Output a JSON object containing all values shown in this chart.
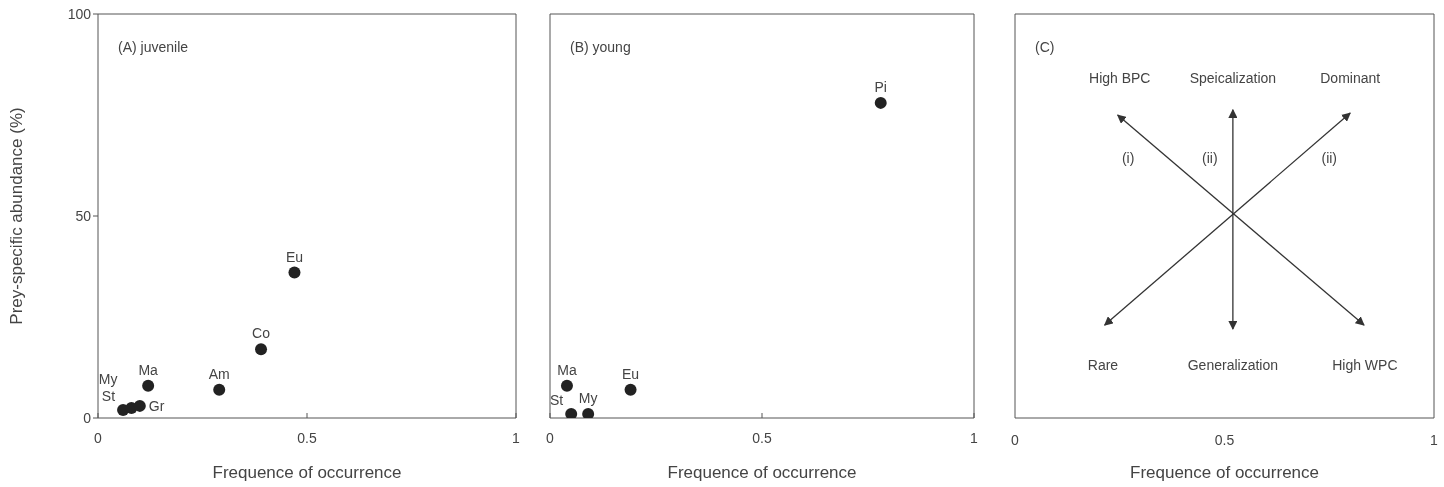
{
  "chart_data": [
    {
      "type": "scatter",
      "title": "(A) juvenile",
      "xlabel": "Frequence of occurrence",
      "ylabel": "Prey-specific abundance (%)",
      "xlim": [
        0,
        1
      ],
      "xticks": [
        0,
        0.5,
        1
      ],
      "ylim": [
        0,
        100
      ],
      "yticks": [
        0,
        50,
        100
      ],
      "marker": "circle",
      "series": [
        {
          "name": "Eu",
          "color": "#222222",
          "x": [
            0.47
          ],
          "values": [
            36
          ]
        },
        {
          "name": "Co",
          "color": "#222222",
          "x": [
            0.39
          ],
          "values": [
            17
          ]
        },
        {
          "name": "Am",
          "color": "#222222",
          "x": [
            0.29
          ],
          "values": [
            7
          ]
        },
        {
          "name": "Ma",
          "color": "#222222",
          "x": [
            0.12
          ],
          "values": [
            8
          ]
        },
        {
          "name": "St",
          "color": "#222222",
          "x": [
            0.06
          ],
          "values": [
            2
          ]
        },
        {
          "name": "My",
          "color": "#222222",
          "x": [
            0.08
          ],
          "values": [
            2.5
          ]
        },
        {
          "name": "Gr",
          "color": "#222222",
          "x": [
            0.1
          ],
          "values": [
            3
          ]
        }
      ]
    },
    {
      "type": "scatter",
      "title": "(B) young",
      "xlabel": "Frequence of occurrence",
      "xlim": [
        0,
        1
      ],
      "xticks": [
        0,
        0.5,
        1
      ],
      "ylim": [
        0,
        100
      ],
      "yticks": [
        0,
        50,
        100
      ],
      "tick_labels": "x",
      "marker": "circle",
      "series": [
        {
          "name": "Pi",
          "color": "#222222",
          "x": [
            0.78
          ],
          "values": [
            78
          ]
        },
        {
          "name": "Ma",
          "color": "#222222",
          "x": [
            0.04
          ],
          "values": [
            8
          ]
        },
        {
          "name": "Eu",
          "color": "#222222",
          "x": [
            0.19
          ],
          "values": [
            7
          ]
        },
        {
          "name": "St",
          "color": "#222222",
          "x": [
            0.05
          ],
          "values": [
            1
          ]
        },
        {
          "name": "My",
          "color": "#222222",
          "x": [
            0.09
          ],
          "values": [
            1
          ]
        }
      ]
    },
    {
      "type": "other",
      "title": "(C)",
      "xlabel": "Frequence of occurrence",
      "annotations": [
        "High BPC",
        "Speicalization",
        "Dominant",
        "(i)",
        "(ii)",
        "(ii)",
        "Rare",
        "Generalization",
        "High WPC",
        "0",
        "0.5",
        "1"
      ]
    }
  ]
}
